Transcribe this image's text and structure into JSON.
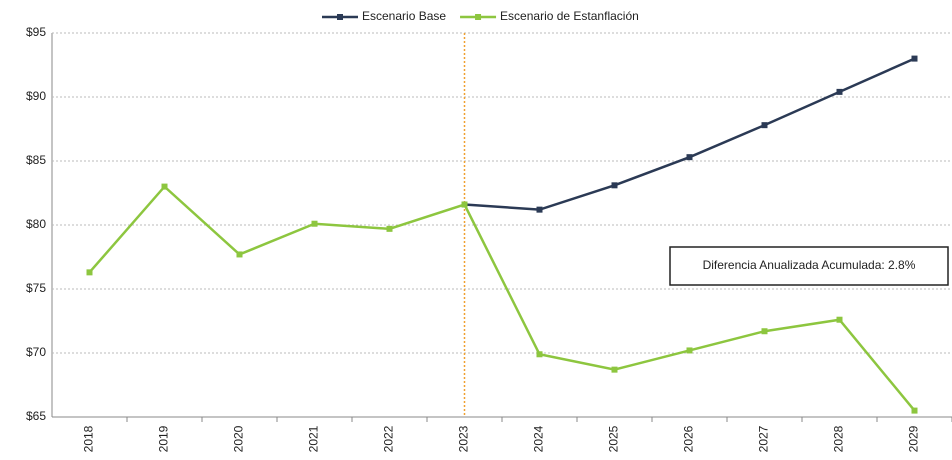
{
  "chart_data": {
    "type": "line",
    "categories": [
      "2018",
      "2019",
      "2020",
      "2021",
      "2022",
      "2023",
      "2024",
      "2025",
      "2026",
      "2027",
      "2028",
      "2029"
    ],
    "series": [
      {
        "name": "Escenario Base",
        "color": "#2b3a55",
        "values": [
          null,
          null,
          null,
          null,
          null,
          81.6,
          81.2,
          83.1,
          85.3,
          87.8,
          90.4,
          93.0
        ]
      },
      {
        "name": "Escenario de Estanflación",
        "color": "#8dc63f",
        "values": [
          76.3,
          83.0,
          77.7,
          80.1,
          79.7,
          81.6,
          69.9,
          68.7,
          70.2,
          71.7,
          72.6,
          65.5
        ]
      }
    ],
    "ylim": [
      65,
      95
    ],
    "yticks": [
      {
        "value": 65,
        "label": "$65"
      },
      {
        "value": 70,
        "label": "$70"
      },
      {
        "value": 75,
        "label": "$75"
      },
      {
        "value": 80,
        "label": "$80"
      },
      {
        "value": 85,
        "label": "$85"
      },
      {
        "value": 90,
        "label": "$90"
      },
      {
        "value": 95,
        "label": "$95"
      }
    ],
    "grid": true,
    "legend": "top",
    "reference_line": {
      "x": "2023",
      "color": "#f0a030"
    },
    "annotation": "Diferencia Anualizada Acumulada: 2.8%"
  }
}
